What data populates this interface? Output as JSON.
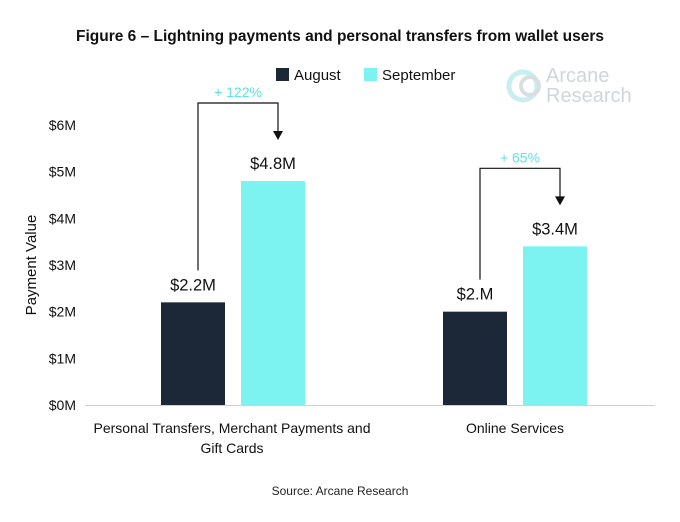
{
  "title": "Figure 6 – Lightning payments and personal transfers from wallet users",
  "source": "Source: Arcane Research",
  "logo": {
    "line1": "Arcane",
    "line2": "Research"
  },
  "colors": {
    "august": "#1c2838",
    "september": "#7cf3f0",
    "growth": "#5ee3e0"
  },
  "chart_data": {
    "type": "bar",
    "categories": [
      "Personal Transfers, Merchant Payments and Gift Cards",
      "Online Services"
    ],
    "series": [
      {
        "name": "August",
        "values": [
          2.2,
          2.0
        ],
        "labels": [
          "$2.2M",
          "$2.M"
        ]
      },
      {
        "name": "September",
        "values": [
          4.8,
          3.4
        ],
        "labels": [
          "$4.8M",
          "$3.4M"
        ]
      }
    ],
    "growth_labels": [
      "+ 122%",
      "+ 65%"
    ],
    "ylabel": "Payment Value",
    "ylim": [
      0,
      6
    ],
    "yticks": [
      "$0M",
      "$1M",
      "$2M",
      "$3M",
      "$4M",
      "$5M",
      "$6M"
    ],
    "legend": "top",
    "grid": false
  }
}
